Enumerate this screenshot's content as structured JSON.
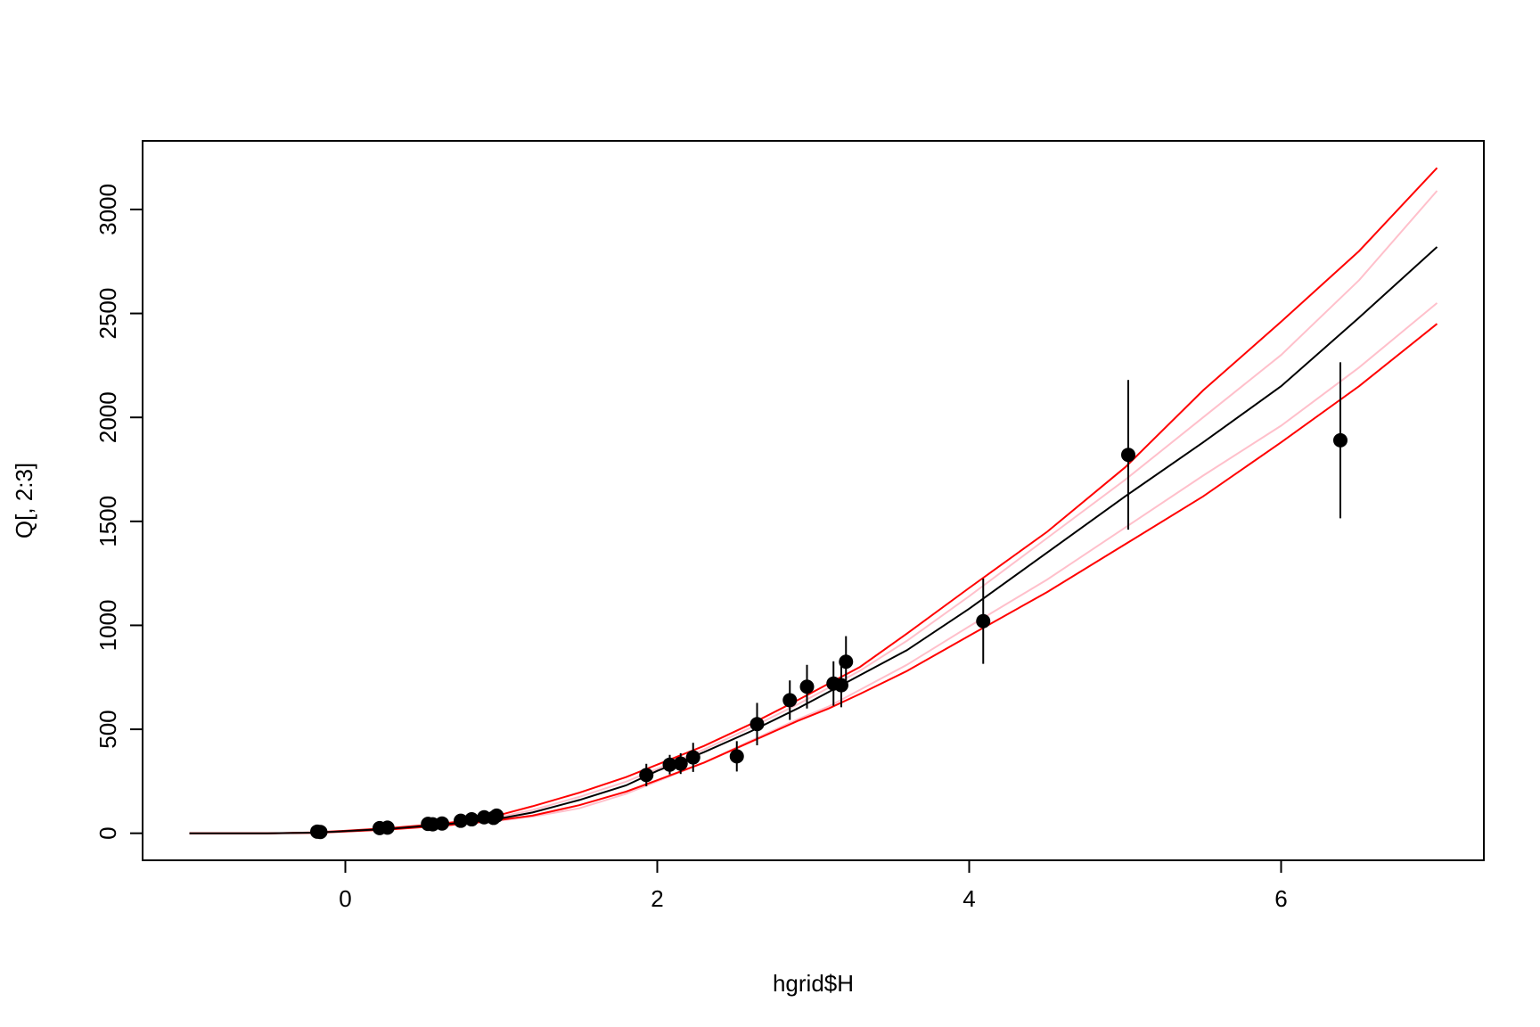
{
  "chart_data": {
    "type": "scatter",
    "title": "",
    "xlabel": "hgrid$H",
    "ylabel": "Q[, 2:3]",
    "xlim": [
      -1.3,
      7.3
    ],
    "ylim": [
      -130,
      3330
    ],
    "xticks": [
      0,
      2,
      4,
      6
    ],
    "xtick_labels": [
      "0",
      "2",
      "4",
      "6"
    ],
    "yticks": [
      0,
      500,
      1000,
      1500,
      2000,
      2500,
      3000
    ],
    "ytick_labels": [
      "0",
      "500",
      "1000",
      "1500",
      "2000",
      "2500",
      "3000"
    ],
    "grid": false,
    "legend": "none",
    "colors": {
      "points": "#000000",
      "median": "#000000",
      "outer_band": "#ff0000",
      "inner_band": "#ffc0cb"
    },
    "points": [
      {
        "x": -0.18,
        "y": 8,
        "lo": 4,
        "hi": 12
      },
      {
        "x": -0.16,
        "y": 6,
        "lo": 3,
        "hi": 10
      },
      {
        "x": 0.22,
        "y": 25,
        "lo": 20,
        "hi": 30
      },
      {
        "x": 0.27,
        "y": 27,
        "lo": 22,
        "hi": 33
      },
      {
        "x": 0.53,
        "y": 45,
        "lo": 38,
        "hi": 52
      },
      {
        "x": 0.56,
        "y": 43,
        "lo": 36,
        "hi": 50
      },
      {
        "x": 0.62,
        "y": 47,
        "lo": 40,
        "hi": 55
      },
      {
        "x": 0.74,
        "y": 60,
        "lo": 51,
        "hi": 69
      },
      {
        "x": 0.81,
        "y": 67,
        "lo": 57,
        "hi": 77
      },
      {
        "x": 0.89,
        "y": 77,
        "lo": 65,
        "hi": 89
      },
      {
        "x": 0.95,
        "y": 74,
        "lo": 63,
        "hi": 85
      },
      {
        "x": 0.97,
        "y": 85,
        "lo": 72,
        "hi": 98
      },
      {
        "x": 1.93,
        "y": 280,
        "lo": 226,
        "hi": 334
      },
      {
        "x": 2.08,
        "y": 330,
        "lo": 283,
        "hi": 377
      },
      {
        "x": 2.15,
        "y": 335,
        "lo": 285,
        "hi": 385
      },
      {
        "x": 2.23,
        "y": 365,
        "lo": 295,
        "hi": 435
      },
      {
        "x": 2.51,
        "y": 370,
        "lo": 297,
        "hi": 443
      },
      {
        "x": 2.64,
        "y": 525,
        "lo": 423,
        "hi": 627
      },
      {
        "x": 2.85,
        "y": 640,
        "lo": 545,
        "hi": 735
      },
      {
        "x": 2.96,
        "y": 705,
        "lo": 600,
        "hi": 810
      },
      {
        "x": 3.13,
        "y": 720,
        "lo": 613,
        "hi": 827
      },
      {
        "x": 3.18,
        "y": 712,
        "lo": 606,
        "hi": 818
      },
      {
        "x": 3.21,
        "y": 825,
        "lo": 702,
        "hi": 948
      },
      {
        "x": 4.09,
        "y": 1020,
        "lo": 815,
        "hi": 1225
      },
      {
        "x": 5.02,
        "y": 1820,
        "lo": 1460,
        "hi": 2180
      },
      {
        "x": 6.38,
        "y": 1890,
        "lo": 1515,
        "hi": 2265
      }
    ],
    "curves": {
      "x": [
        -1.0,
        -0.5,
        -0.2,
        0.0,
        0.3,
        0.6,
        0.8,
        1.0,
        1.2,
        1.5,
        1.8,
        2.0,
        2.3,
        2.6,
        2.9,
        3.1,
        3.3,
        3.6,
        4.0,
        4.5,
        5.0,
        5.5,
        6.0,
        6.5,
        7.0
      ],
      "median": [
        0,
        0,
        3,
        10,
        22,
        40,
        55,
        72,
        100,
        160,
        230,
        300,
        390,
        490,
        600,
        680,
        760,
        880,
        1080,
        1350,
        1620,
        1880,
        2150,
        2480,
        2820
      ],
      "outer_upper": [
        0,
        0,
        4,
        12,
        26,
        45,
        62,
        90,
        130,
        195,
        270,
        330,
        420,
        525,
        640,
        720,
        800,
        960,
        1180,
        1450,
        1760,
        2130,
        2460,
        2800,
        3200
      ],
      "outer_lower": [
        0,
        0,
        2,
        8,
        19,
        35,
        48,
        65,
        85,
        135,
        200,
        255,
        340,
        440,
        540,
        600,
        670,
        780,
        950,
        1160,
        1390,
        1620,
        1880,
        2150,
        2450
      ],
      "inner_upper": [
        0,
        0,
        3,
        11,
        24,
        42,
        58,
        80,
        112,
        175,
        248,
        310,
        403,
        508,
        620,
        700,
        782,
        925,
        1140,
        1420,
        1700,
        2000,
        2300,
        2660,
        3090
      ],
      "inner_lower": [
        0,
        0,
        2,
        9,
        20,
        37,
        51,
        62,
        80,
        120,
        190,
        250,
        340,
        445,
        548,
        610,
        690,
        810,
        995,
        1220,
        1470,
        1720,
        1960,
        2240,
        2550
      ]
    }
  }
}
